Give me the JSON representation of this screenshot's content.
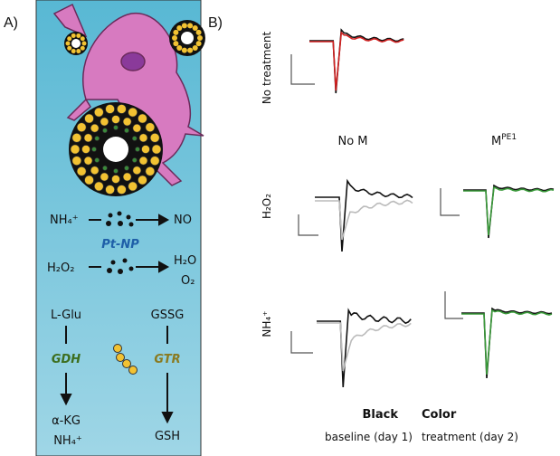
{
  "panel_a": {
    "label": "A)",
    "reaction1": {
      "reactant": "NH₄⁺",
      "product": "NO"
    },
    "catalyst": "Pt-NP",
    "reaction2": {
      "reactant": "H₂O₂",
      "products": [
        "H₂O",
        "O₂"
      ]
    },
    "pathway_left": {
      "substrate": "L-Glu",
      "enzyme": "GDH",
      "products": [
        "α-KG",
        "NH₄⁺"
      ]
    },
    "pathway_right": {
      "substrate": "GSSG",
      "enzyme": "GTR",
      "product": "GSH"
    }
  },
  "panel_b": {
    "label": "B)",
    "row_labels": [
      "No treatment",
      "H₂O₂",
      "NH₄⁺"
    ],
    "column_labels": {
      "no_m": "No M",
      "m": {
        "base": "M",
        "sup": "PE1"
      }
    },
    "legend": [
      {
        "title": "Black",
        "text": "baseline (day 1)"
      },
      {
        "title": "Color",
        "text": "treatment (day 2)"
      }
    ]
  }
}
